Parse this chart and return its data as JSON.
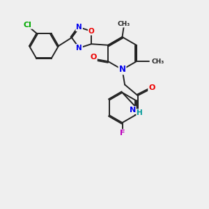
{
  "bg_color": "#efefef",
  "bond_color": "#222222",
  "bond_width": 1.4,
  "dbo": 0.055,
  "atom_colors": {
    "N": "#0000ee",
    "O": "#ee0000",
    "Cl": "#00aa00",
    "F": "#bb00bb",
    "H": "#009999",
    "C": "#222222"
  }
}
